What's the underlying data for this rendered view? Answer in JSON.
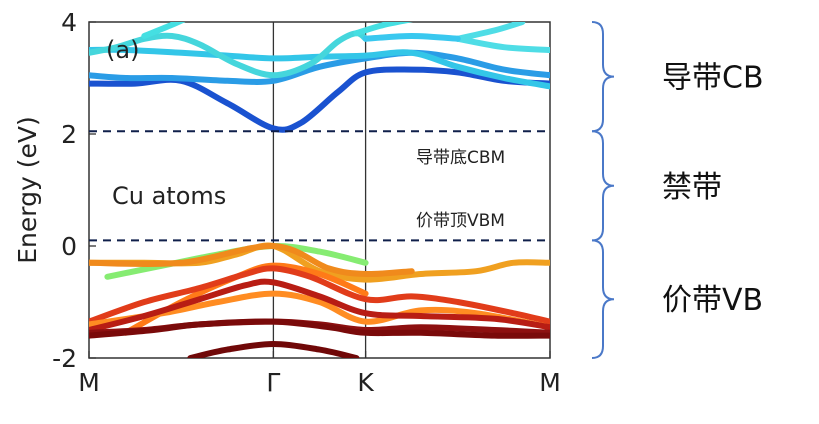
{
  "chart_data": {
    "type": "line",
    "panel_label": "(a)",
    "annotation": "Cu atoms",
    "ylabel": "Energy (eV)",
    "xlabel": "",
    "xticks": [
      "M",
      "Γ",
      "K",
      "M"
    ],
    "xtick_positions": [
      0,
      1,
      1.5,
      2.5
    ],
    "ylim": [
      -2,
      4
    ],
    "xlim": [
      0,
      2.5
    ],
    "yticks": [
      4,
      2,
      0,
      -2
    ],
    "yticklabels": [
      "4",
      "2",
      "0",
      "-2"
    ],
    "grid": false,
    "cbm": 2.05,
    "vbm": 0.1,
    "cbm_label": "导带底CBM",
    "vbm_label": "价带顶VBM",
    "regions": [
      {
        "name": "导带CB",
        "from": 2.05,
        "to": 4.0
      },
      {
        "name": "禁带",
        "from": 0.1,
        "to": 2.05
      },
      {
        "name": "价带VB",
        "from": -2.0,
        "to": 0.1
      }
    ],
    "series": [
      {
        "color": "#1a52d0",
        "points": [
          [
            0,
            2.9
          ],
          [
            0.25,
            2.9
          ],
          [
            0.5,
            2.95
          ],
          [
            0.75,
            2.55
          ],
          [
            1,
            2.1
          ],
          [
            1.15,
            2.2
          ],
          [
            1.35,
            2.75
          ],
          [
            1.5,
            3.1
          ],
          [
            1.75,
            3.15
          ],
          [
            2.0,
            3.1
          ],
          [
            2.25,
            2.95
          ],
          [
            2.5,
            2.9
          ]
        ]
      },
      {
        "color": "#2a9ce6",
        "points": [
          [
            0,
            3.05
          ],
          [
            0.2,
            3.0
          ],
          [
            0.45,
            3.0
          ],
          [
            0.75,
            2.95
          ],
          [
            1,
            2.95
          ],
          [
            1.25,
            3.2
          ],
          [
            1.5,
            3.35
          ],
          [
            1.75,
            3.45
          ],
          [
            2.0,
            3.35
          ],
          [
            2.25,
            3.15
          ],
          [
            2.5,
            3.05
          ]
        ]
      },
      {
        "color": "#33c6e8",
        "points": [
          [
            0,
            3.5
          ],
          [
            0.2,
            3.5
          ],
          [
            0.5,
            3.45
          ],
          [
            0.75,
            3.4
          ],
          [
            1,
            3.35
          ],
          [
            1.25,
            3.38
          ],
          [
            1.5,
            3.4
          ],
          [
            1.75,
            3.45
          ],
          [
            2.0,
            3.2
          ],
          [
            2.25,
            3.0
          ],
          [
            2.5,
            2.85
          ]
        ]
      },
      {
        "color": "#45d6dc",
        "points": [
          [
            0,
            3.45
          ],
          [
            0.15,
            3.55
          ],
          [
            0.3,
            3.7
          ],
          [
            0.45,
            3.75
          ],
          [
            0.6,
            3.6
          ],
          [
            0.8,
            3.25
          ],
          [
            1,
            3.05
          ],
          [
            1.2,
            3.25
          ],
          [
            1.35,
            3.65
          ],
          [
            1.45,
            3.8
          ],
          [
            1.5,
            3.7
          ]
        ]
      },
      {
        "color": "#45dfe2",
        "points": [
          [
            0.3,
            3.75
          ],
          [
            0.45,
            3.95
          ],
          [
            0.55,
            4.1
          ]
        ]
      },
      {
        "color": "#45dfe2",
        "points": [
          [
            1.45,
            3.8
          ],
          [
            1.6,
            3.95
          ],
          [
            1.75,
            4.05
          ]
        ]
      },
      {
        "color": "#4fdde6",
        "points": [
          [
            2.0,
            3.7
          ],
          [
            2.2,
            3.85
          ],
          [
            2.35,
            4.0
          ]
        ]
      },
      {
        "color": "#4fdde6",
        "points": [
          [
            2.0,
            3.7
          ],
          [
            2.25,
            3.55
          ],
          [
            2.5,
            3.5
          ]
        ]
      },
      {
        "color": "#39c8ef",
        "points": [
          [
            1.5,
            3.7
          ],
          [
            1.75,
            3.75
          ],
          [
            2.0,
            3.7
          ]
        ]
      },
      {
        "color": "#86ec72",
        "points": [
          [
            0.1,
            -0.55
          ],
          [
            0.4,
            -0.35
          ],
          [
            0.7,
            -0.15
          ],
          [
            1,
            0.0
          ],
          [
            1.25,
            -0.1
          ],
          [
            1.5,
            -0.3
          ]
        ]
      },
      {
        "color": "#f0a020",
        "points": [
          [
            0,
            -0.3
          ],
          [
            0.3,
            -0.3
          ],
          [
            0.6,
            -0.3
          ],
          [
            0.8,
            -0.15
          ],
          [
            1,
            0.0
          ],
          [
            1.25,
            -0.45
          ],
          [
            1.5,
            -0.6
          ],
          [
            1.8,
            -0.5
          ],
          [
            2.1,
            -0.45
          ],
          [
            2.3,
            -0.3
          ],
          [
            2.5,
            -0.3
          ]
        ]
      },
      {
        "color": "#f08a1c",
        "points": [
          [
            0,
            -0.3
          ],
          [
            0.5,
            -0.3
          ],
          [
            1,
            0.0
          ],
          [
            1.3,
            -0.4
          ],
          [
            1.5,
            -0.5
          ],
          [
            1.75,
            -0.45
          ]
        ]
      },
      {
        "color": "#ff7a18",
        "points": [
          [
            0.2,
            -1.55
          ],
          [
            0.5,
            -1.0
          ],
          [
            0.8,
            -0.55
          ],
          [
            1,
            -0.35
          ],
          [
            1.25,
            -0.5
          ],
          [
            1.5,
            -0.85
          ]
        ]
      },
      {
        "color": "#e13c1a",
        "points": [
          [
            0,
            -1.35
          ],
          [
            0.3,
            -1.0
          ],
          [
            0.6,
            -0.75
          ],
          [
            0.85,
            -0.5
          ],
          [
            1,
            -0.4
          ],
          [
            1.2,
            -0.55
          ],
          [
            1.5,
            -0.95
          ],
          [
            1.75,
            -0.9
          ],
          [
            2.0,
            -1.0
          ],
          [
            2.3,
            -1.2
          ],
          [
            2.5,
            -1.35
          ]
        ]
      },
      {
        "color": "#ff8c22",
        "points": [
          [
            0,
            -1.4
          ],
          [
            0.4,
            -1.2
          ],
          [
            0.7,
            -1.0
          ],
          [
            1,
            -0.85
          ],
          [
            1.25,
            -1.0
          ],
          [
            1.5,
            -1.35
          ],
          [
            1.8,
            -1.15
          ],
          [
            2.1,
            -1.2
          ],
          [
            2.5,
            -1.45
          ]
        ]
      },
      {
        "color": "#b81d14",
        "points": [
          [
            0,
            -1.5
          ],
          [
            0.3,
            -1.25
          ],
          [
            0.6,
            -0.95
          ],
          [
            0.85,
            -0.7
          ],
          [
            1,
            -0.65
          ],
          [
            1.25,
            -0.9
          ],
          [
            1.5,
            -1.2
          ],
          [
            1.8,
            -1.25
          ],
          [
            2.2,
            -1.3
          ],
          [
            2.5,
            -1.45
          ]
        ]
      },
      {
        "color": "#8d1010",
        "points": [
          [
            0,
            -1.55
          ],
          [
            0.3,
            -1.5
          ],
          [
            0.6,
            -1.4
          ],
          [
            1,
            -1.35
          ],
          [
            1.25,
            -1.4
          ],
          [
            1.5,
            -1.5
          ],
          [
            1.8,
            -1.45
          ],
          [
            2.2,
            -1.5
          ],
          [
            2.5,
            -1.55
          ]
        ]
      },
      {
        "color": "#7a0a0a",
        "points": [
          [
            0,
            -1.6
          ],
          [
            0.35,
            -1.5
          ],
          [
            0.6,
            -1.4
          ],
          [
            1,
            -1.35
          ],
          [
            1.3,
            -1.45
          ],
          [
            1.5,
            -1.55
          ],
          [
            1.8,
            -1.55
          ],
          [
            2.2,
            -1.6
          ],
          [
            2.5,
            -1.6
          ]
        ]
      },
      {
        "color": "#700808",
        "points": [
          [
            0.55,
            -2.0
          ],
          [
            0.75,
            -1.85
          ],
          [
            1,
            -1.75
          ],
          [
            1.25,
            -1.85
          ],
          [
            1.45,
            -2.0
          ]
        ]
      }
    ]
  }
}
